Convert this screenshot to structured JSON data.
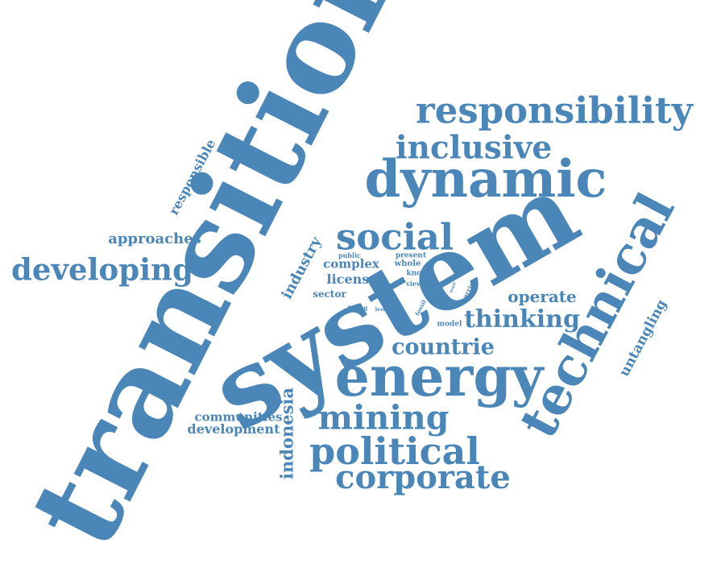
{
  "color": "#4a86b8",
  "words": {
    "transition": "transition",
    "system": "system",
    "energy": "energy",
    "technical": "technical",
    "responsibility": "responsibility",
    "dynamic": "dynamic",
    "inclusive": "inclusive",
    "social": "social",
    "developing": "developing",
    "approaches": "approaches",
    "responsible": "responsible",
    "political": "political",
    "corporate": "corporate",
    "mining": "mining",
    "countrie": "countrie",
    "thinking": "thinking",
    "operate": "operate",
    "untangling": "untangling",
    "industry": "industry",
    "complex": "complex",
    "license": "license",
    "sector": "sector",
    "indonesia": "indonesia",
    "communities": "communities",
    "development": "development",
    "public": "public",
    "present": "present",
    "whole": "whole",
    "knot": "knot",
    "view": "view",
    "barrier": "barrier",
    "paper": "paper",
    "trust": "trust",
    "facing": "facing",
    "lever": "lever",
    "fossil": "fossil",
    "model": "model"
  }
}
